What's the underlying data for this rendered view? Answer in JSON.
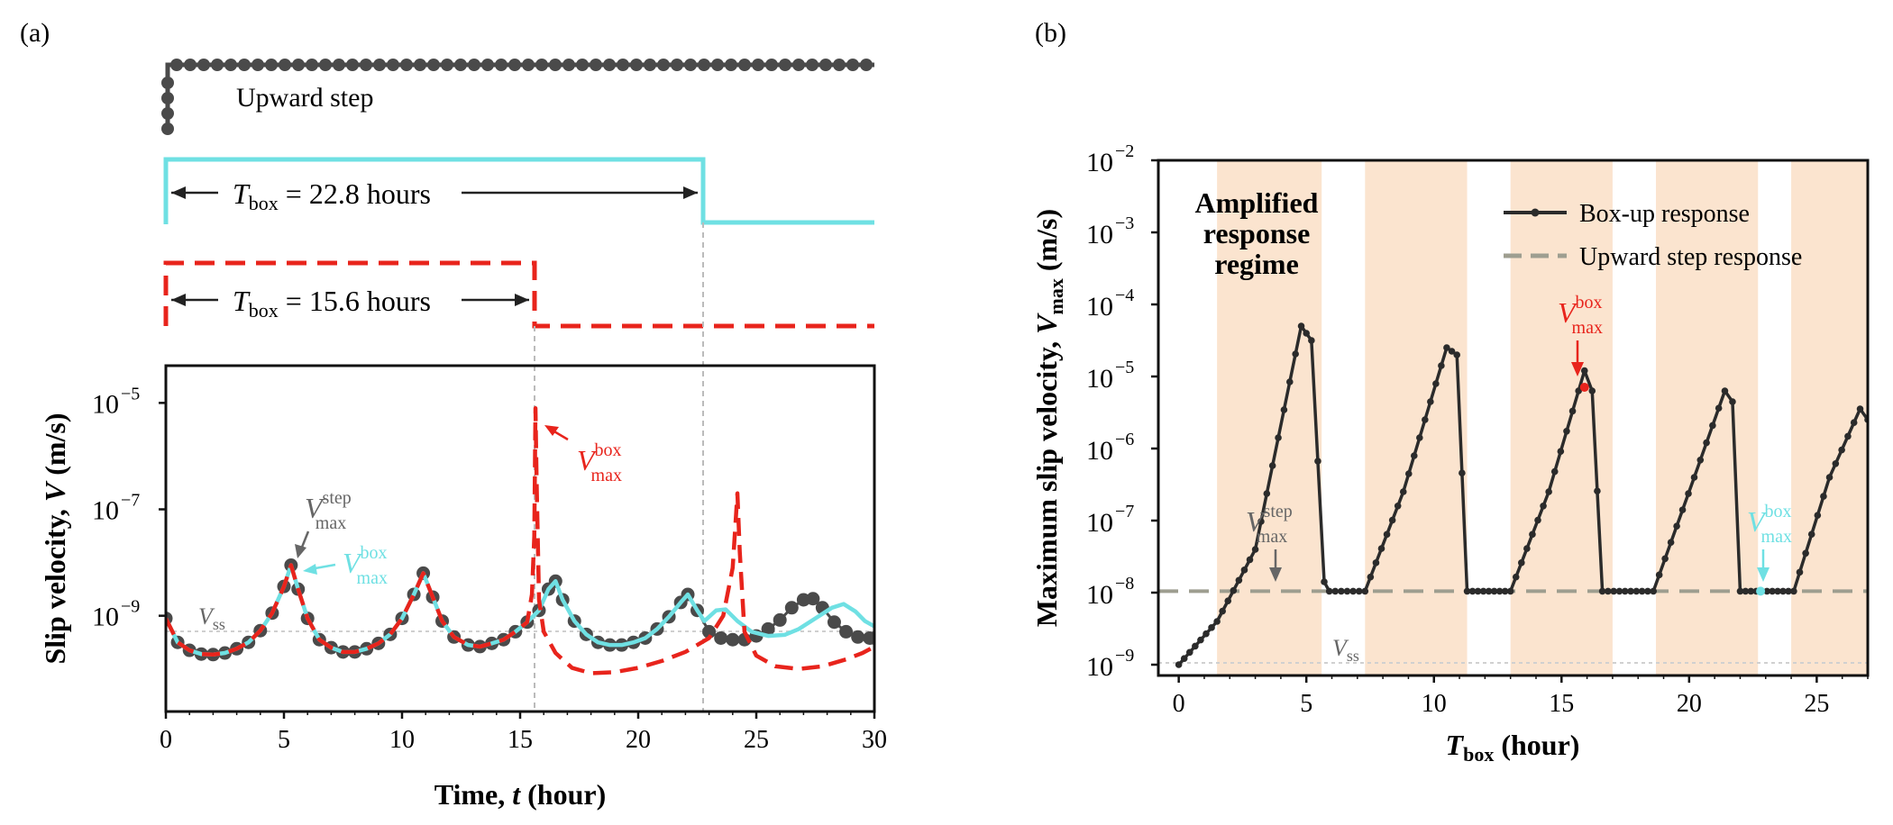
{
  "chart_data": [
    {
      "panel": "(a)",
      "type": "line",
      "xlabel_prefix": "Time, ",
      "xlabel_var": "t",
      "xlabel_unit": " (hour)",
      "ylabel_prefix": "Slip velocity, ",
      "ylabel_var": "V",
      "ylabel_unit": " (m/s)",
      "xlim": [
        0,
        30
      ],
      "ylim_log10": [
        -10.8,
        -4.3
      ],
      "xticks": [
        0,
        5,
        10,
        15,
        20,
        25,
        30
      ],
      "yticks_exp": [
        -5,
        -7,
        -9
      ],
      "tick_base": "10",
      "vss_label": "V",
      "vss_sub": "ss",
      "vss_value_log10": -9,
      "inputs": {
        "step_label": "Upward step",
        "box1_label_prefix": "T",
        "box1_label_sub": "box",
        "box1_label_value": " = 22.8 hours",
        "box1_duration_h": 22.8,
        "box2_label_prefix": "T",
        "box2_label_sub": "box",
        "box2_label_value": " = 15.6 hours",
        "box2_duration_h": 15.6
      },
      "series": [
        {
          "name": "Upward step response",
          "color": "#4a4a4a",
          "points": [
            [
              0,
              -9.05
            ],
            [
              0.5,
              -9.5
            ],
            [
              1,
              -9.65
            ],
            [
              1.5,
              -9.72
            ],
            [
              2,
              -9.73
            ],
            [
              2.5,
              -9.7
            ],
            [
              3,
              -9.62
            ],
            [
              3.5,
              -9.5
            ],
            [
              4,
              -9.28
            ],
            [
              4.5,
              -8.95
            ],
            [
              5,
              -8.45
            ],
            [
              5.3,
              -8.05
            ],
            [
              5.6,
              -8.5
            ],
            [
              6,
              -9.05
            ],
            [
              6.5,
              -9.45
            ],
            [
              7,
              -9.6
            ],
            [
              7.5,
              -9.68
            ],
            [
              8,
              -9.68
            ],
            [
              8.5,
              -9.62
            ],
            [
              9,
              -9.52
            ],
            [
              9.5,
              -9.35
            ],
            [
              10,
              -9.05
            ],
            [
              10.5,
              -8.6
            ],
            [
              10.9,
              -8.2
            ],
            [
              11.3,
              -8.65
            ],
            [
              11.7,
              -9.1
            ],
            [
              12.2,
              -9.4
            ],
            [
              12.8,
              -9.55
            ],
            [
              13.3,
              -9.58
            ],
            [
              13.8,
              -9.52
            ],
            [
              14.3,
              -9.45
            ],
            [
              14.8,
              -9.3
            ],
            [
              15.3,
              -9.12
            ],
            [
              15.8,
              -8.9
            ],
            [
              16.2,
              -8.5
            ],
            [
              16.5,
              -8.35
            ],
            [
              16.8,
              -8.7
            ],
            [
              17.3,
              -9.1
            ],
            [
              17.8,
              -9.35
            ],
            [
              18.3,
              -9.5
            ],
            [
              18.8,
              -9.55
            ],
            [
              19.3,
              -9.55
            ],
            [
              19.8,
              -9.5
            ],
            [
              20.3,
              -9.42
            ],
            [
              20.8,
              -9.25
            ],
            [
              21.3,
              -9.02
            ],
            [
              21.8,
              -8.75
            ],
            [
              22.1,
              -8.6
            ],
            [
              22.5,
              -8.9
            ],
            [
              23,
              -9.3
            ],
            [
              23.5,
              -9.42
            ],
            [
              24,
              -9.45
            ],
            [
              24.5,
              -9.45
            ],
            [
              25,
              -9.38
            ],
            [
              25.5,
              -9.25
            ],
            [
              26,
              -9.08
            ],
            [
              26.5,
              -8.85
            ],
            [
              27,
              -8.7
            ],
            [
              27.4,
              -8.68
            ],
            [
              27.8,
              -8.85
            ],
            [
              28.3,
              -9.12
            ],
            [
              28.8,
              -9.3
            ],
            [
              29.3,
              -9.4
            ],
            [
              29.8,
              -9.42
            ],
            [
              30,
              -9.42
            ]
          ]
        },
        {
          "name": "Box-up response (T_box = 22.8 hours)",
          "color": "#6fe0e3",
          "points": [
            [
              0,
              -9.05
            ],
            [
              0.5,
              -9.5
            ],
            [
              1,
              -9.65
            ],
            [
              1.5,
              -9.72
            ],
            [
              2,
              -9.73
            ],
            [
              2.5,
              -9.7
            ],
            [
              3,
              -9.62
            ],
            [
              3.5,
              -9.5
            ],
            [
              4,
              -9.28
            ],
            [
              4.5,
              -8.95
            ],
            [
              5,
              -8.45
            ],
            [
              5.3,
              -8.05
            ],
            [
              5.6,
              -8.5
            ],
            [
              6,
              -9.05
            ],
            [
              6.5,
              -9.45
            ],
            [
              7,
              -9.6
            ],
            [
              7.5,
              -9.68
            ],
            [
              8,
              -9.68
            ],
            [
              8.5,
              -9.62
            ],
            [
              9,
              -9.52
            ],
            [
              9.5,
              -9.35
            ],
            [
              10,
              -9.05
            ],
            [
              10.5,
              -8.6
            ],
            [
              10.9,
              -8.2
            ],
            [
              11.3,
              -8.65
            ],
            [
              11.7,
              -9.1
            ],
            [
              12.2,
              -9.4
            ],
            [
              12.8,
              -9.55
            ],
            [
              13.3,
              -9.58
            ],
            [
              13.8,
              -9.52
            ],
            [
              14.3,
              -9.45
            ],
            [
              14.8,
              -9.3
            ],
            [
              15.3,
              -9.12
            ],
            [
              15.8,
              -8.9
            ],
            [
              16.2,
              -8.5
            ],
            [
              16.5,
              -8.35
            ],
            [
              16.8,
              -8.7
            ],
            [
              17.3,
              -9.1
            ],
            [
              17.8,
              -9.35
            ],
            [
              18.3,
              -9.5
            ],
            [
              18.8,
              -9.55
            ],
            [
              19.3,
              -9.55
            ],
            [
              19.8,
              -9.5
            ],
            [
              20.3,
              -9.42
            ],
            [
              20.8,
              -9.25
            ],
            [
              21.3,
              -9.02
            ],
            [
              21.8,
              -8.75
            ],
            [
              22.1,
              -8.6
            ],
            [
              22.5,
              -8.9
            ],
            [
              22.8,
              -9.1
            ],
            [
              23.3,
              -8.9
            ],
            [
              23.7,
              -8.88
            ],
            [
              24.2,
              -9.1
            ],
            [
              24.8,
              -9.3
            ],
            [
              25.5,
              -9.38
            ],
            [
              26.2,
              -9.36
            ],
            [
              26.8,
              -9.25
            ],
            [
              27.5,
              -9.05
            ],
            [
              28.2,
              -8.85
            ],
            [
              28.7,
              -8.78
            ],
            [
              29.2,
              -8.92
            ],
            [
              29.6,
              -9.1
            ],
            [
              30,
              -9.2
            ]
          ]
        },
        {
          "name": "Box-up response (T_box = 15.6 hours)",
          "color": "#e8241c",
          "dashed": true,
          "points": [
            [
              0,
              -9.05
            ],
            [
              0.5,
              -9.5
            ],
            [
              1,
              -9.65
            ],
            [
              1.5,
              -9.72
            ],
            [
              2,
              -9.73
            ],
            [
              2.5,
              -9.7
            ],
            [
              3,
              -9.62
            ],
            [
              3.5,
              -9.5
            ],
            [
              4,
              -9.28
            ],
            [
              4.5,
              -8.95
            ],
            [
              5,
              -8.45
            ],
            [
              5.3,
              -8.05
            ],
            [
              5.6,
              -8.5
            ],
            [
              6,
              -9.05
            ],
            [
              6.5,
              -9.45
            ],
            [
              7,
              -9.6
            ],
            [
              7.5,
              -9.68
            ],
            [
              8,
              -9.68
            ],
            [
              8.5,
              -9.62
            ],
            [
              9,
              -9.52
            ],
            [
              9.5,
              -9.35
            ],
            [
              10,
              -9.05
            ],
            [
              10.5,
              -8.6
            ],
            [
              10.9,
              -8.2
            ],
            [
              11.3,
              -8.65
            ],
            [
              11.7,
              -9.1
            ],
            [
              12.2,
              -9.4
            ],
            [
              12.8,
              -9.55
            ],
            [
              13.3,
              -9.58
            ],
            [
              13.8,
              -9.52
            ],
            [
              14.3,
              -9.45
            ],
            [
              14.8,
              -9.3
            ],
            [
              15.3,
              -9.12
            ],
            [
              15.5,
              -8.6
            ],
            [
              15.6,
              -7.5
            ],
            [
              15.65,
              -5.1
            ],
            [
              15.7,
              -6.5
            ],
            [
              15.8,
              -8.7
            ],
            [
              16.0,
              -9.3
            ],
            [
              16.5,
              -9.7
            ],
            [
              17.2,
              -9.98
            ],
            [
              18.0,
              -10.08
            ],
            [
              19.0,
              -10.06
            ],
            [
              20.0,
              -9.98
            ],
            [
              21.0,
              -9.85
            ],
            [
              22.0,
              -9.68
            ],
            [
              23.0,
              -9.42
            ],
            [
              23.6,
              -9.0
            ],
            [
              24.0,
              -8.1
            ],
            [
              24.2,
              -6.7
            ],
            [
              24.3,
              -7.8
            ],
            [
              24.5,
              -9.3
            ],
            [
              25.0,
              -9.75
            ],
            [
              25.8,
              -9.95
            ],
            [
              26.8,
              -10.0
            ],
            [
              27.8,
              -9.95
            ],
            [
              28.8,
              -9.82
            ],
            [
              29.5,
              -9.7
            ],
            [
              30,
              -9.58
            ]
          ]
        }
      ],
      "annotations": {
        "box_max": {
          "sym": "V",
          "sup": "box",
          "sub": "max"
        },
        "step_max": {
          "sym": "V",
          "sup": "step",
          "sub": "max"
        }
      }
    },
    {
      "panel": "(b)",
      "type": "line",
      "xlabel_var": "T",
      "xlabel_sub": "box",
      "xlabel_unit": " (hour)",
      "ylabel_prefix": "Maximum slip velocity, ",
      "ylabel_var": "V",
      "ylabel_sub": "max",
      "ylabel_unit": " (m/s)",
      "xlim": [
        -0.8,
        27
      ],
      "ylim_log10": [
        -9.15,
        -2
      ],
      "xticks": [
        0,
        5,
        10,
        15,
        20,
        25
      ],
      "yticks_exp": [
        -9,
        -8,
        -7,
        -6,
        -5,
        -4,
        -3,
        -2
      ],
      "tick_base": "10",
      "regime_label": [
        "Amplified",
        "response",
        "regime"
      ],
      "shaded_bands_h": [
        [
          1.5,
          5.6
        ],
        [
          7.3,
          11.3
        ],
        [
          13.0,
          17.0
        ],
        [
          18.7,
          22.7
        ],
        [
          24.0,
          27
        ]
      ],
      "legend": {
        "box_up": "Box-up response",
        "step": "Upward step response",
        "position": "top-right"
      },
      "vss_label": "V",
      "vss_sub": "ss",
      "vss_value_log10": -9,
      "step_value_log10": -7.98,
      "series": [
        {
          "name": "Box-up response",
          "color": "#2b2b2b",
          "points": [
            [
              0,
              -9
            ],
            [
              1.5,
              -8.4
            ],
            [
              3,
              -7.4
            ],
            [
              4.8,
              -4.3
            ],
            [
              5.2,
              -4.5
            ],
            [
              5.7,
              -7.85
            ],
            [
              5.9,
              -7.98
            ],
            [
              7.3,
              -7.98
            ],
            [
              8.8,
              -6.6
            ],
            [
              10.5,
              -4.6
            ],
            [
              10.9,
              -4.7
            ],
            [
              11.3,
              -7.98
            ],
            [
              13.0,
              -7.98
            ],
            [
              14.5,
              -6.6
            ],
            [
              15.9,
              -4.92
            ],
            [
              16.2,
              -5.2
            ],
            [
              16.6,
              -7.98
            ],
            [
              18.6,
              -7.98
            ],
            [
              20.2,
              -6.4
            ],
            [
              21.4,
              -5.2
            ],
            [
              21.7,
              -5.35
            ],
            [
              22.0,
              -7.98
            ],
            [
              24.1,
              -7.98
            ],
            [
              25.5,
              -6.4
            ],
            [
              26.7,
              -5.45
            ],
            [
              27,
              -5.6
            ]
          ]
        },
        {
          "name": "Upward step response",
          "color": "#9e9e90",
          "dashed": true,
          "points": [
            [
              -0.8,
              -7.98
            ],
            [
              27,
              -7.98
            ]
          ]
        }
      ],
      "annotations": {
        "box_max": {
          "sym": "V",
          "sup": "box",
          "sub": "max"
        },
        "step_max": {
          "sym": "V",
          "sup": "step",
          "sub": "max"
        }
      }
    }
  ],
  "panel_labels": {
    "a": "(a)",
    "b": "(b)"
  },
  "colors": {
    "step": "#4a4a4a",
    "cyan": "#6fe0e3",
    "red": "#e8241c",
    "shade": "#fbe4cf",
    "dashgray": "#9e9e90"
  }
}
